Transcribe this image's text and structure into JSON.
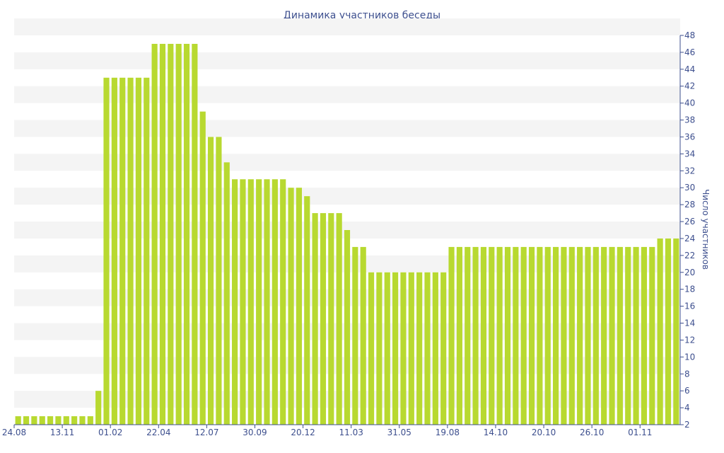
{
  "chart_data": {
    "type": "bar",
    "title": "Динамика участников беседы",
    "xlabel": "",
    "ylabel": "Число участников",
    "ylim": [
      2,
      48
    ],
    "y_ticks": [
      2,
      4,
      6,
      8,
      10,
      12,
      14,
      16,
      18,
      20,
      22,
      24,
      26,
      28,
      30,
      32,
      34,
      36,
      38,
      40,
      42,
      44,
      46,
      48
    ],
    "y_axis_position": "right",
    "grid": "horizontal bands",
    "color": "#b8d930",
    "x_tick_labels": [
      {
        "label": "24.08",
        "index": 0
      },
      {
        "label": "13.11",
        "index": 6
      },
      {
        "label": "01.02",
        "index": 12
      },
      {
        "label": "22.04",
        "index": 18
      },
      {
        "label": "12.07",
        "index": 24
      },
      {
        "label": "30.09",
        "index": 30
      },
      {
        "label": "20.12",
        "index": 36
      },
      {
        "label": "11.03",
        "index": 42
      },
      {
        "label": "31.05",
        "index": 48
      },
      {
        "label": "19.08",
        "index": 54
      },
      {
        "label": "14.10",
        "index": 60
      },
      {
        "label": "20.10",
        "index": 66
      },
      {
        "label": "26.10",
        "index": 72
      },
      {
        "label": "01.11",
        "index": 78
      }
    ],
    "values": [
      3,
      3,
      3,
      3,
      3,
      3,
      3,
      3,
      3,
      3,
      6,
      43,
      43,
      43,
      43,
      43,
      43,
      47,
      47,
      47,
      47,
      47,
      47,
      39,
      36,
      36,
      33,
      31,
      31,
      31,
      31,
      31,
      31,
      31,
      30,
      30,
      29,
      27,
      27,
      27,
      27,
      25,
      23,
      23,
      20,
      20,
      20,
      20,
      20,
      20,
      20,
      20,
      20,
      20,
      23,
      23,
      23,
      23,
      23,
      23,
      23,
      23,
      23,
      23,
      23,
      23,
      23,
      23,
      23,
      23,
      23,
      23,
      23,
      23,
      23,
      23,
      23,
      23,
      23,
      23,
      24,
      24,
      24
    ]
  }
}
